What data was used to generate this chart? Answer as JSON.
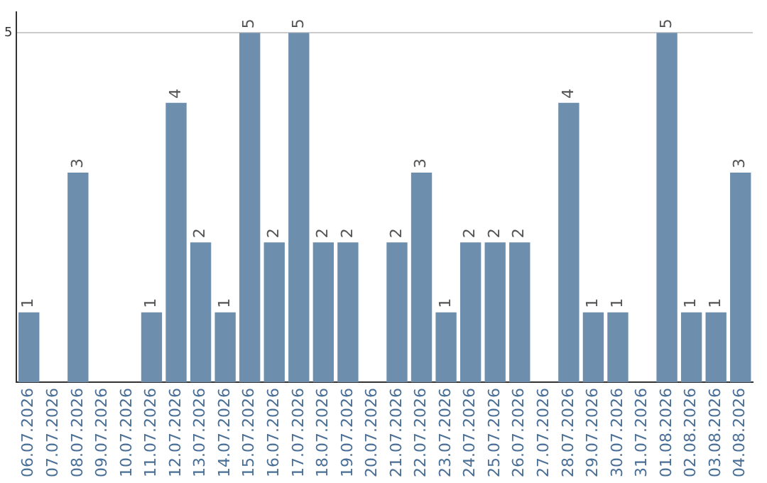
{
  "chart_data": {
    "type": "bar",
    "categories": [
      "06.07.2026",
      "07.07.2026",
      "08.07.2026",
      "09.07.2026",
      "10.07.2026",
      "11.07.2026",
      "12.07.2026",
      "13.07.2026",
      "14.07.2026",
      "15.07.2026",
      "16.07.2026",
      "17.07.2026",
      "18.07.2026",
      "19.07.2026",
      "20.07.2026",
      "21.07.2026",
      "22.07.2026",
      "23.07.2026",
      "24.07.2026",
      "25.07.2026",
      "26.07.2026",
      "27.07.2026",
      "28.07.2026",
      "29.07.2026",
      "30.07.2026",
      "31.07.2026",
      "01.08.2026",
      "02.08.2026",
      "03.08.2026",
      "04.08.2026"
    ],
    "values": [
      1,
      0,
      3,
      0,
      0,
      1,
      4,
      2,
      1,
      5,
      2,
      5,
      2,
      2,
      0,
      2,
      3,
      1,
      2,
      2,
      2,
      0,
      4,
      1,
      1,
      0,
      5,
      1,
      1,
      3
    ],
    "value_labels": [
      "1",
      null,
      "3",
      null,
      null,
      "1",
      "4",
      "2",
      "1",
      "5",
      "2",
      "5",
      "2",
      "2",
      null,
      "2",
      "3",
      "1",
      "2",
      "2",
      "2",
      null,
      "4",
      "1",
      "1",
      null,
      "5",
      "1",
      "1",
      "3"
    ],
    "color": "#6d8fad",
    "ylim": [
      0,
      5.3
    ],
    "yticks": [
      5
    ],
    "grid": "y",
    "legend": false
  }
}
